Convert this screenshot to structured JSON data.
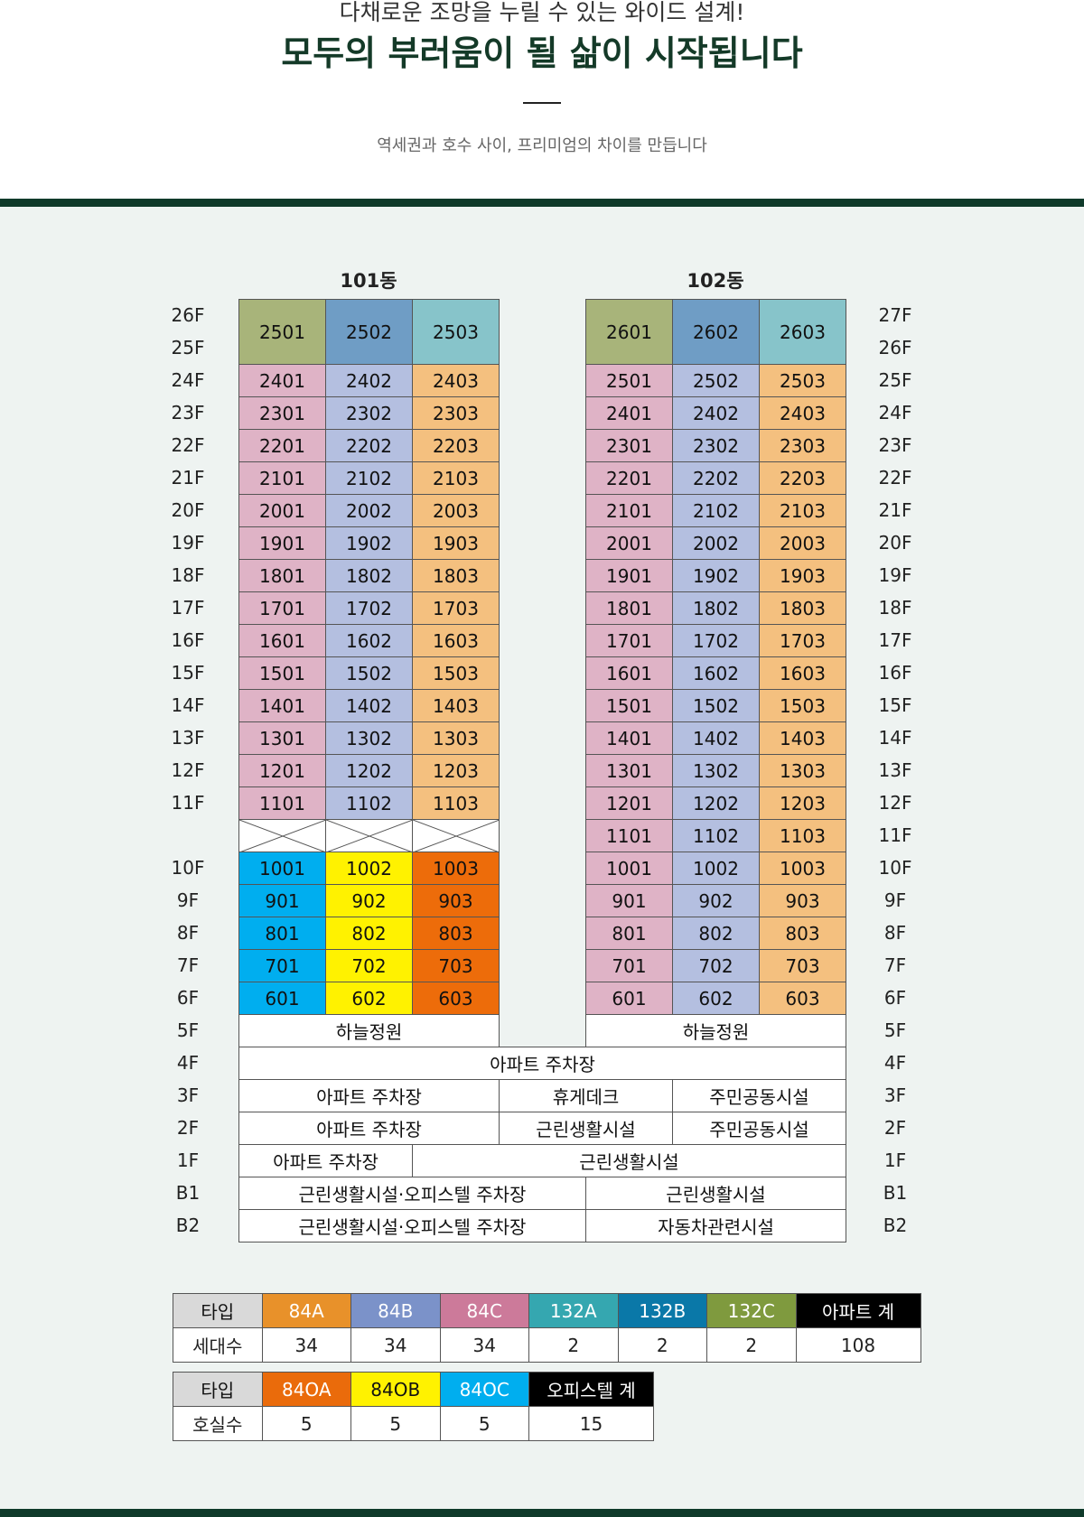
{
  "header": {
    "subtitle": "다채로운 조망을 누릴 수 있는 와이드 설계!",
    "title": "모두의 부러움이 될 삶이 시작됩니다",
    "description": "역세권과 호수 사이, 프리미엄의 차이를 만듭니다"
  },
  "diagram": {
    "buildings": [
      {
        "name": "101동",
        "penthouse": [
          "2501",
          "2502",
          "2503"
        ],
        "units": [
          [
            "2401",
            "2402",
            "2403"
          ],
          [
            "2301",
            "2302",
            "2303"
          ],
          [
            "2201",
            "2202",
            "2203"
          ],
          [
            "2101",
            "2102",
            "2103"
          ],
          [
            "2001",
            "2002",
            "2003"
          ],
          [
            "1901",
            "1902",
            "1903"
          ],
          [
            "1801",
            "1802",
            "1803"
          ],
          [
            "1701",
            "1702",
            "1703"
          ],
          [
            "1601",
            "1602",
            "1603"
          ],
          [
            "1501",
            "1502",
            "1503"
          ],
          [
            "1401",
            "1402",
            "1403"
          ],
          [
            "1301",
            "1302",
            "1303"
          ],
          [
            "1201",
            "1202",
            "1203"
          ],
          [
            "1101",
            "1102",
            "1103"
          ]
        ],
        "lower_units": [
          [
            "1001",
            "1002",
            "1003"
          ],
          [
            "901",
            "902",
            "903"
          ],
          [
            "801",
            "802",
            "803"
          ],
          [
            "701",
            "702",
            "703"
          ],
          [
            "601",
            "602",
            "603"
          ]
        ]
      },
      {
        "name": "102동",
        "penthouse": [
          "2601",
          "2602",
          "2603"
        ],
        "units": [
          [
            "2501",
            "2502",
            "2503"
          ],
          [
            "2401",
            "2402",
            "2403"
          ],
          [
            "2301",
            "2302",
            "2303"
          ],
          [
            "2201",
            "2202",
            "2203"
          ],
          [
            "2101",
            "2102",
            "2103"
          ],
          [
            "2001",
            "2002",
            "2003"
          ],
          [
            "1901",
            "1902",
            "1903"
          ],
          [
            "1801",
            "1802",
            "1803"
          ],
          [
            "1701",
            "1702",
            "1703"
          ],
          [
            "1601",
            "1602",
            "1603"
          ],
          [
            "1501",
            "1502",
            "1503"
          ],
          [
            "1401",
            "1402",
            "1403"
          ],
          [
            "1301",
            "1302",
            "1303"
          ],
          [
            "1201",
            "1202",
            "1203"
          ],
          [
            "1101",
            "1102",
            "1103"
          ],
          [
            "1001",
            "1002",
            "1003"
          ],
          [
            "901",
            "902",
            "903"
          ],
          [
            "801",
            "802",
            "803"
          ],
          [
            "701",
            "702",
            "703"
          ],
          [
            "601",
            "602",
            "603"
          ]
        ]
      }
    ],
    "floors_left": [
      "26F",
      "25F",
      "24F",
      "23F",
      "22F",
      "21F",
      "20F",
      "19F",
      "18F",
      "17F",
      "16F",
      "15F",
      "14F",
      "13F",
      "12F",
      "11F",
      null,
      "10F",
      "9F",
      "8F",
      "7F",
      "6F",
      "5F",
      "4F",
      "3F",
      "2F",
      "1F",
      "B1",
      "B2"
    ],
    "floors_right": [
      "27F",
      "26F",
      "25F",
      "24F",
      "23F",
      "22F",
      "21F",
      "20F",
      "19F",
      "18F",
      "17F",
      "16F",
      "15F",
      "14F",
      "13F",
      "12F",
      "11F",
      "10F",
      "9F",
      "8F",
      "7F",
      "6F",
      "5F",
      "4F",
      "3F",
      "2F",
      "1F",
      "B1",
      "B2"
    ],
    "podium": [
      [
        "하늘정원",
        "하늘정원"
      ],
      [
        "아파트 주차장"
      ],
      [
        "아파트 주차장",
        "휴게데크",
        "주민공동시설"
      ],
      [
        "아파트 주차장",
        "근린생활시설",
        "주민공동시설"
      ],
      [
        "아파트 주차장",
        "근린생활시설"
      ],
      [
        "근린생활시설·오피스텔 주차장",
        "근린생활시설"
      ],
      [
        "근린생활시설·오피스텔 주차장",
        "자동차관련시설"
      ]
    ]
  },
  "unit_table": {
    "rows": [
      [
        "타입",
        "84A",
        "84B",
        "84C",
        "132A",
        "132B",
        "132C",
        "아파트 계"
      ],
      [
        "세대수",
        34,
        34,
        34,
        2,
        2,
        2,
        108
      ]
    ]
  },
  "officetel_table": {
    "rows": [
      [
        "타입",
        "84OA",
        "84OB",
        "84OC",
        "오피스텔 계"
      ],
      [
        "호실수",
        5,
        5,
        5,
        15
      ]
    ]
  }
}
